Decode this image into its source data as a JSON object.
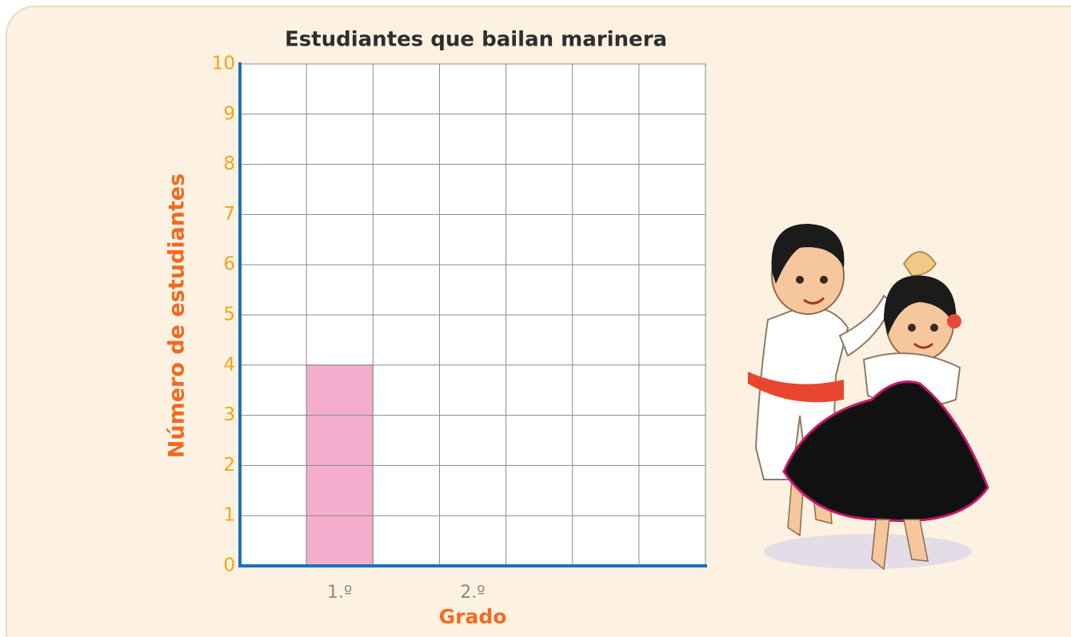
{
  "chart_data": {
    "type": "bar",
    "title": "Estudiantes que bailan marinera",
    "x_label": "Grado",
    "y_label": "Número de estudiantes",
    "categories": [
      null,
      "1.º",
      null,
      "2.º",
      null,
      null,
      null
    ],
    "values": [
      null,
      4,
      null,
      null,
      null,
      null,
      null
    ],
    "color": "#f3aecd",
    "ylim": [
      0,
      10
    ],
    "yticks": [
      0,
      1,
      2,
      3,
      4,
      5,
      6,
      7,
      8,
      9,
      10
    ],
    "grid": true
  }
}
